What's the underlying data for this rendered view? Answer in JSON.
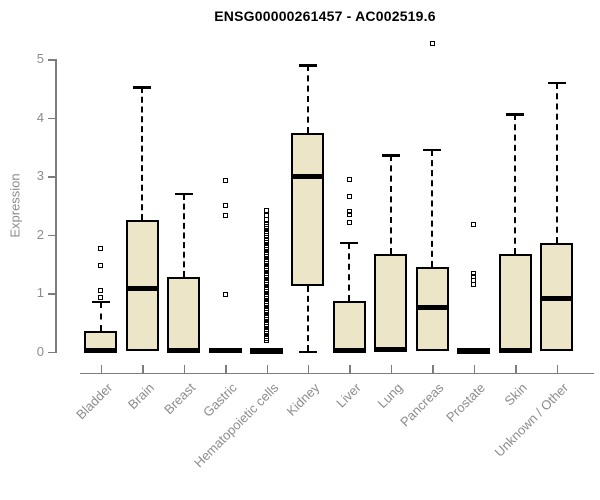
{
  "chart_data": {
    "type": "boxplot",
    "title": "ENSG00000261457 - AC002519.6",
    "ylabel": "Expression",
    "xlabel": "",
    "ylim": [
      0,
      5.4
    ],
    "yticks": [
      0,
      1,
      2,
      3,
      4,
      5
    ],
    "grid": false,
    "legend": "none",
    "colors": {
      "box_fill": "#ece5c8",
      "box_border": "#000000",
      "median": "#000000",
      "axis": "#7d7d7d",
      "tick_label": "#8c8c8c",
      "title": "#000000"
    },
    "categories": [
      "Bladder",
      "Brain",
      "Breast",
      "Gastric",
      "Hematopoietic cells",
      "Kidney",
      "Liver",
      "Lung",
      "Pancreas",
      "Prostate",
      "Skin",
      "Unknown / Other"
    ],
    "boxes": [
      {
        "category": "Bladder",
        "q1": 0,
        "median": 0.02,
        "q3": 0.35,
        "whisker_low": 0,
        "whisker_high": 0.85,
        "outliers": [
          1.77,
          1.47,
          1.04,
          0.93
        ]
      },
      {
        "category": "Brain",
        "q1": 0,
        "median": 1.08,
        "q3": 2.25,
        "whisker_low": 0,
        "whisker_high": 4.52,
        "outliers": []
      },
      {
        "category": "Breast",
        "q1": 0,
        "median": 0.02,
        "q3": 1.28,
        "whisker_low": 0,
        "whisker_high": 2.7,
        "outliers": []
      },
      {
        "category": "Gastric",
        "q1": 0,
        "median": 0.02,
        "q3": 0.04,
        "whisker_low": 0,
        "whisker_high": 0.05,
        "outliers": [
          2.93,
          2.5,
          2.33,
          0.97
        ]
      },
      {
        "category": "Hematopoietic cells",
        "q1": 0,
        "median": 0.01,
        "q3": 0.03,
        "whisker_low": 0,
        "whisker_high": 0.04,
        "outliers": [
          2.42,
          2.32,
          2.26,
          2.18,
          2.14,
          2.1,
          2.06,
          2.02,
          1.98,
          1.9,
          1.86,
          1.82,
          1.78,
          1.74,
          1.7,
          1.66,
          1.62,
          1.58,
          1.54,
          1.5,
          1.46,
          1.42,
          1.38,
          1.34,
          1.3,
          1.26,
          1.22,
          1.18,
          1.14,
          1.1,
          1.06,
          1.02,
          0.98,
          0.94,
          0.9,
          0.86,
          0.82,
          0.78,
          0.74,
          0.7,
          0.66,
          0.62,
          0.58,
          0.54,
          0.5,
          0.46,
          0.42,
          0.38,
          0.34,
          0.3,
          0.26,
          0.22,
          0.18
        ]
      },
      {
        "category": "Kidney",
        "q1": 1.12,
        "median": 2.99,
        "q3": 3.73,
        "whisker_low": 0,
        "whisker_high": 4.9,
        "outliers": []
      },
      {
        "category": "Liver",
        "q1": 0,
        "median": 0.02,
        "q3": 0.86,
        "whisker_low": 0,
        "whisker_high": 1.86,
        "outliers": [
          2.94,
          2.66,
          2.4,
          2.35,
          2.2
        ]
      },
      {
        "category": "Lung",
        "q1": 0,
        "median": 0.03,
        "q3": 1.67,
        "whisker_low": 0,
        "whisker_high": 3.36,
        "outliers": []
      },
      {
        "category": "Pancreas",
        "q1": 0,
        "median": 0.76,
        "q3": 1.44,
        "whisker_low": 0,
        "whisker_high": 3.45,
        "outliers": [
          5.27
        ]
      },
      {
        "category": "Prostate",
        "q1": 0,
        "median": 0.01,
        "q3": 0.03,
        "whisker_low": 0,
        "whisker_high": 0.04,
        "outliers": [
          2.18,
          1.34,
          1.28,
          1.22,
          1.15
        ]
      },
      {
        "category": "Skin",
        "q1": 0,
        "median": 0.02,
        "q3": 1.66,
        "whisker_low": 0,
        "whisker_high": 4.06,
        "outliers": []
      },
      {
        "category": "Unknown / Other",
        "q1": 0,
        "median": 0.91,
        "q3": 1.85,
        "whisker_low": 0,
        "whisker_high": 4.6,
        "outliers": []
      }
    ]
  }
}
